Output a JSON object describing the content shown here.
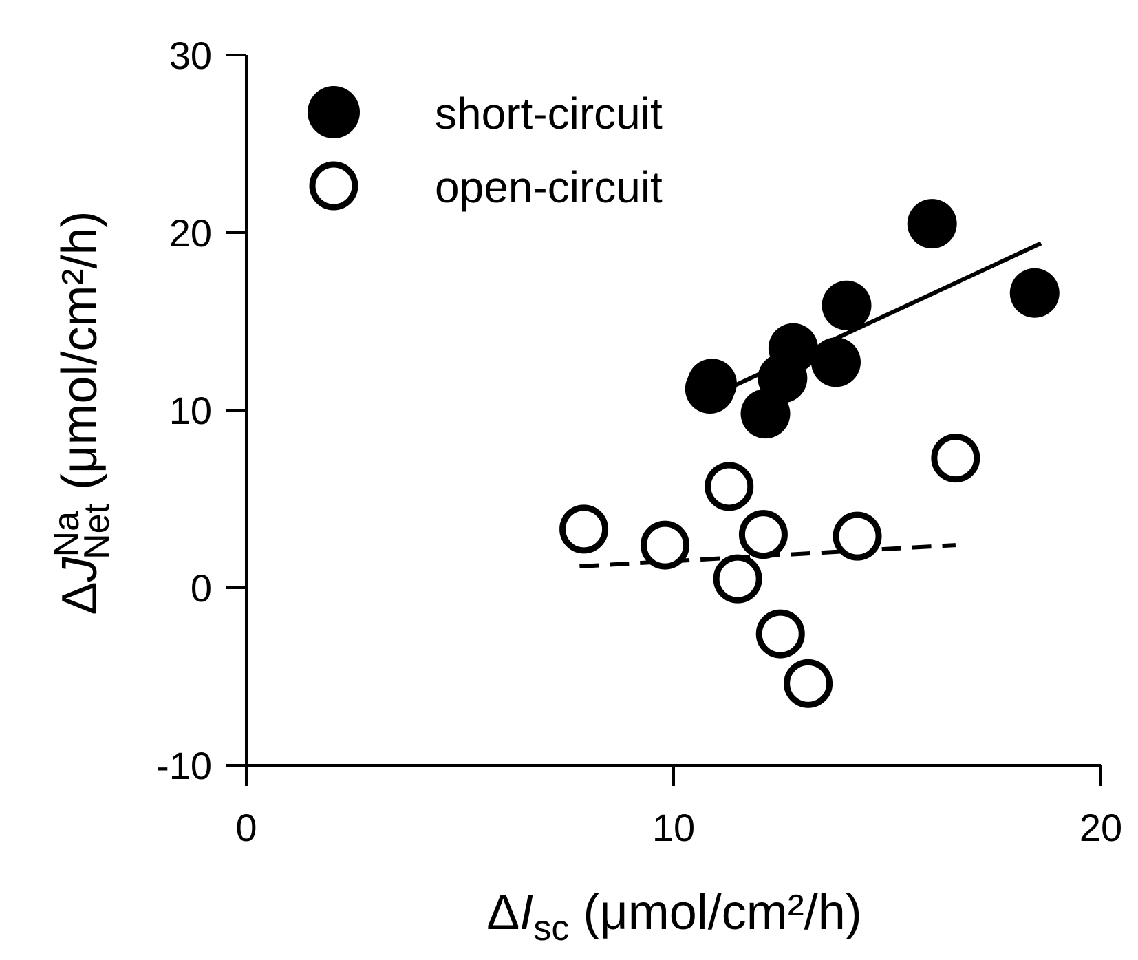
{
  "chart_data": {
    "type": "scatter",
    "xlim": [
      0,
      20
    ],
    "ylim": [
      -10,
      30
    ],
    "x_ticks": [
      "0",
      "10",
      "20"
    ],
    "y_ticks": [
      "-10",
      "0",
      "10",
      "20",
      "30"
    ],
    "xlabel": {
      "delta": "Δ",
      "var": "I",
      "sub": "sc",
      "units": " (μmol/cm²/h)"
    },
    "ylabel": {
      "delta": "Δ",
      "var": "J",
      "sup": "Na",
      "sub": "Net",
      "units": "  (μmol/cm²/h)"
    },
    "legend_position": "top-left",
    "series": [
      {
        "name": "short-circuit",
        "marker": "filled-circle",
        "color": "#000000",
        "points": [
          {
            "x": 10.9,
            "y": 11.5
          },
          {
            "x": 10.85,
            "y": 11.2
          },
          {
            "x": 12.15,
            "y": 9.8
          },
          {
            "x": 12.55,
            "y": 11.8
          },
          {
            "x": 12.8,
            "y": 13.5
          },
          {
            "x": 13.8,
            "y": 12.7
          },
          {
            "x": 14.05,
            "y": 15.9
          },
          {
            "x": 16.05,
            "y": 20.5
          },
          {
            "x": 18.45,
            "y": 16.6
          }
        ],
        "fit": {
          "style": "solid",
          "x": [
            11.35,
            18.6
          ],
          "y": [
            11.3,
            19.4
          ]
        }
      },
      {
        "name": "open-circuit",
        "marker": "open-circle",
        "color": "#000000",
        "points": [
          {
            "x": 7.9,
            "y": 3.3
          },
          {
            "x": 9.8,
            "y": 2.4
          },
          {
            "x": 11.3,
            "y": 5.7
          },
          {
            "x": 11.5,
            "y": 0.5
          },
          {
            "x": 12.1,
            "y": 3.0
          },
          {
            "x": 12.5,
            "y": -2.6
          },
          {
            "x": 13.15,
            "y": -5.4
          },
          {
            "x": 14.3,
            "y": 2.9
          },
          {
            "x": 16.6,
            "y": 7.3
          }
        ],
        "fit": {
          "style": "dashed",
          "x": [
            7.8,
            16.6
          ],
          "y": [
            1.2,
            2.4
          ]
        }
      }
    ]
  }
}
